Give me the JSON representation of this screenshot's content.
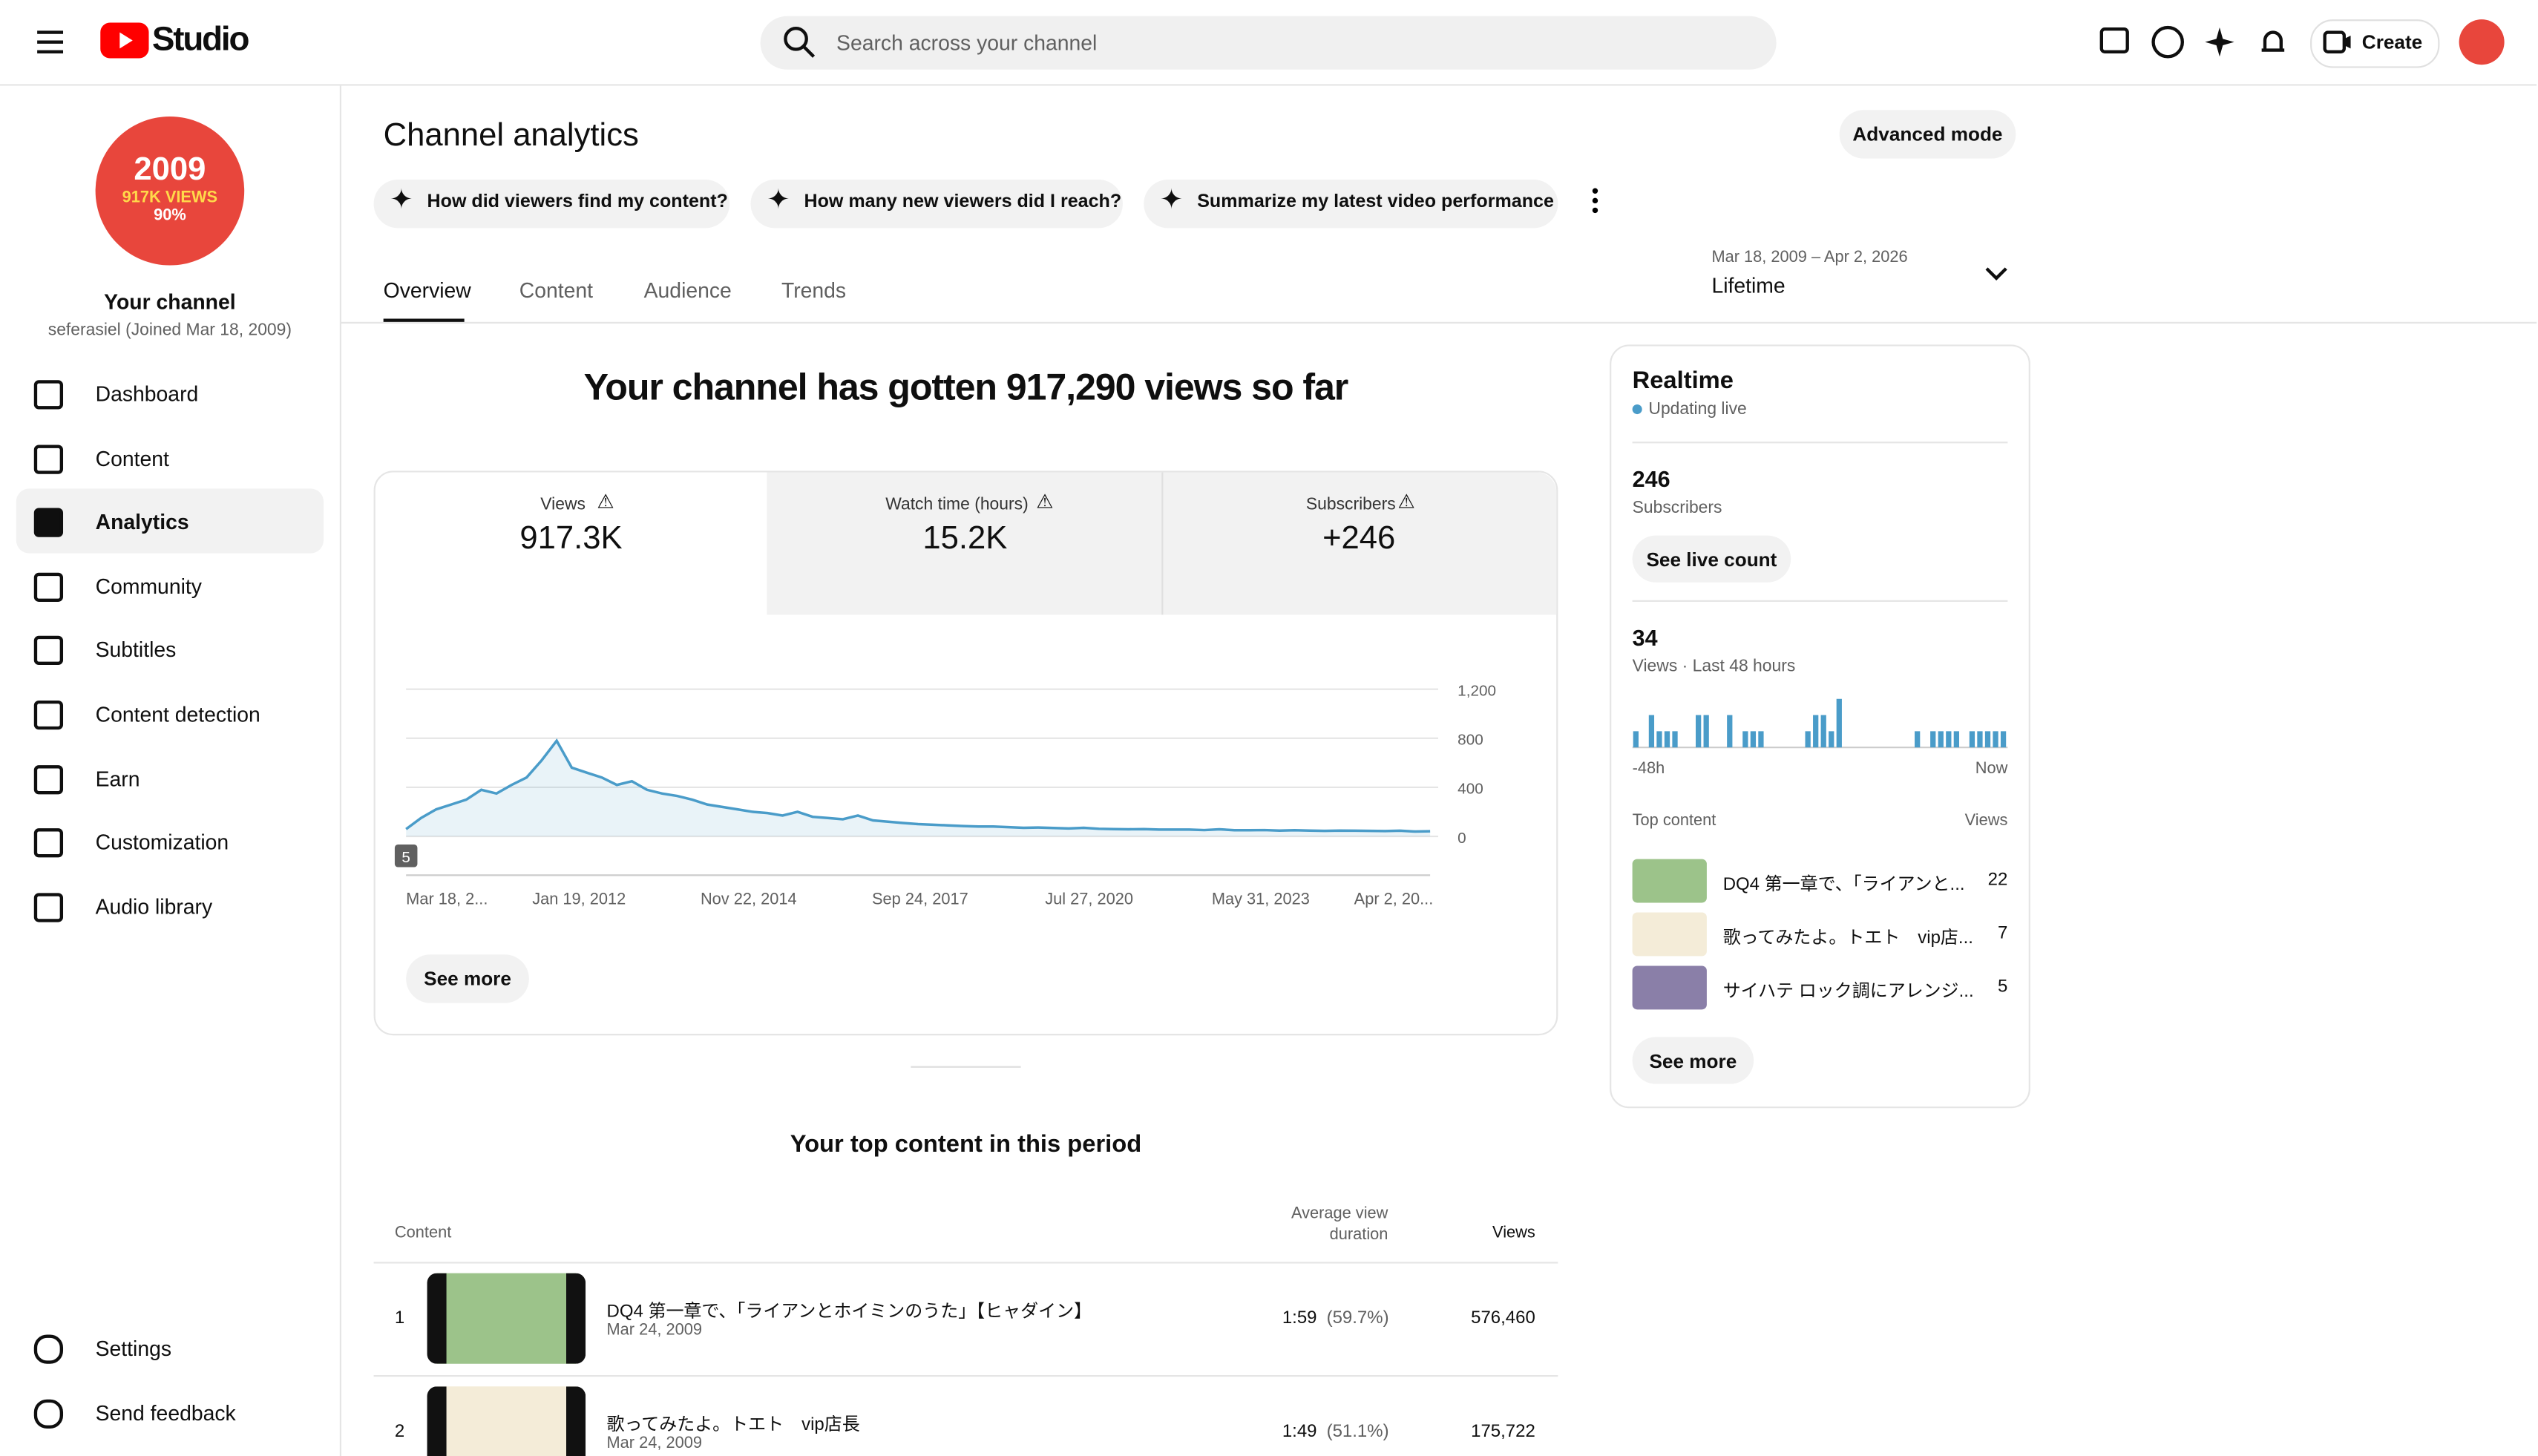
{
  "header": {
    "logo": "Studio",
    "search_placeholder": "Search across your channel",
    "create": "Create"
  },
  "sidebar": {
    "avatar_lines": [
      "2009",
      "917K VIEWS",
      "90%"
    ],
    "channel_name": "Your channel",
    "channel_sub": "seferasiel (Joined Mar 18, 2009)",
    "nav": [
      "Dashboard",
      "Content",
      "Analytics",
      "Community",
      "Subtitles",
      "Content detection",
      "Earn",
      "Customization",
      "Audio library"
    ],
    "bottom": [
      "Settings",
      "Send feedback"
    ]
  },
  "page": {
    "title": "Channel analytics",
    "advanced": "Advanced mode",
    "prompts": [
      "How did viewers find my content?",
      "How many new viewers did I reach?",
      "Summarize my latest video performance"
    ],
    "tabs": [
      "Overview",
      "Content",
      "Audience",
      "Trends"
    ],
    "date_range": "Mar 18, 2009 – Apr 2, 2026",
    "period": "Lifetime",
    "headline": "Your channel has gotten 917,290 views so far"
  },
  "metrics": [
    {
      "label": "Views",
      "value": "917.3K"
    },
    {
      "label": "Watch time (hours)",
      "value": "15.2K"
    },
    {
      "label": "Subscribers",
      "value": "+246"
    }
  ],
  "chart_data": {
    "type": "area",
    "color": "#4a9cc9",
    "values": [
      60,
      150,
      220,
      260,
      300,
      380,
      350,
      420,
      480,
      620,
      780,
      560,
      520,
      480,
      420,
      450,
      380,
      350,
      330,
      300,
      260,
      240,
      220,
      200,
      190,
      170,
      200,
      160,
      150,
      140,
      170,
      130,
      120,
      110,
      100,
      95,
      90,
      85,
      80,
      80,
      75,
      70,
      72,
      68,
      65,
      70,
      62,
      60,
      58,
      60,
      55,
      56,
      55,
      52,
      58,
      50,
      50,
      52,
      48,
      50,
      48,
      45,
      47,
      46,
      45,
      44,
      46,
      40,
      42
    ],
    "ylim": [
      0,
      1200
    ],
    "yticks": [
      0,
      400,
      800,
      {
        "value": 1200,
        "label": "1,200"
      }
    ],
    "xtick_labels": [
      "Mar 18, 2...",
      "Jan 19, 2012",
      "Nov 22, 2014",
      "Sep 24, 2017",
      "Jul 27, 2020",
      "May 31, 2023",
      "Apr 2, 20..."
    ],
    "annotation": "5",
    "see_more": "See more"
  },
  "top_content": {
    "title": "Your top content in this period",
    "columns": [
      "Content",
      "Average view duration",
      "Views"
    ],
    "rows": [
      {
        "rank": "1",
        "title": "DQ4 第一章で、「ライアンとホイミンのうた」【ヒャダイン】",
        "date": "Mar 24, 2009",
        "duration": "1:59",
        "percent": "(59.7%)",
        "views": "576,460"
      },
      {
        "rank": "2",
        "title": "歌ってみたよ。トエト　vip店長",
        "date": "Mar 24, 2009",
        "duration": "1:49",
        "percent": "(51.1%)",
        "views": "175,722"
      }
    ]
  },
  "realtime": {
    "title": "Realtime",
    "status": "Updating live",
    "subscribers": "246",
    "subscribers_label": "Subscribers",
    "see_live": "See live count",
    "views": "34",
    "views_label": "Views · Last 48 hours",
    "bars": [
      1,
      0,
      2,
      1,
      1,
      1,
      0,
      0,
      2,
      2,
      0,
      0,
      2,
      0,
      1,
      1,
      1,
      0,
      0,
      0,
      0,
      0,
      1,
      2,
      2,
      1,
      3,
      0,
      0,
      0,
      0,
      0,
      0,
      0,
      0,
      0,
      1,
      0,
      1,
      1,
      1,
      1,
      0,
      1,
      1,
      1,
      1,
      1
    ],
    "axis": [
      "-48h",
      "Now"
    ],
    "top_header": [
      "Top content",
      "Views"
    ],
    "top": [
      {
        "title": "DQ4 第一章で、「ライアンと...",
        "views": "22"
      },
      {
        "title": "歌ってみたよ。トエト　vip店...",
        "views": "7"
      },
      {
        "title": "サイハテ ロック調にアレンジ...",
        "views": "5"
      }
    ],
    "see_more": "See more"
  }
}
